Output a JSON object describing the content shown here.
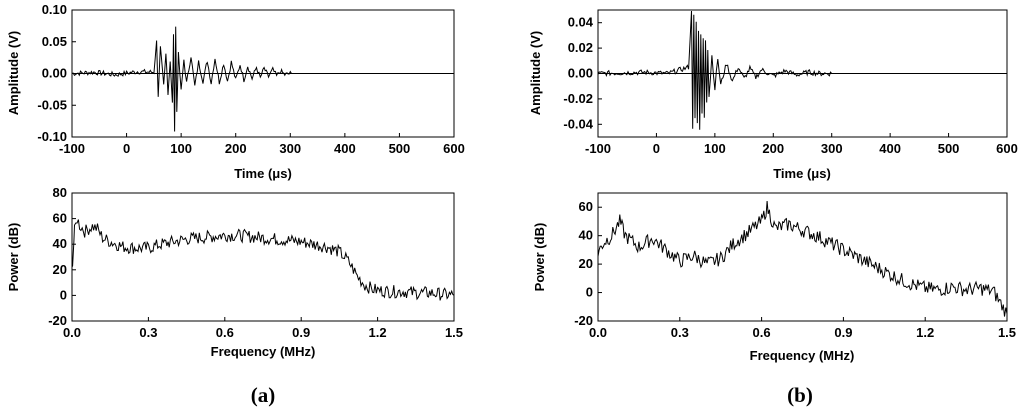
{
  "panel_labels": {
    "a": "(a)",
    "b": "(b)"
  },
  "chart_data": [
    {
      "id": "a_time",
      "type": "line",
      "xlabel": "Time (μs)",
      "ylabel": "Amplitude (V)",
      "xlim": [
        -100,
        600
      ],
      "ylim": [
        -0.1,
        0.1
      ],
      "xticks": [
        -100,
        0,
        100,
        200,
        300,
        400,
        500,
        600
      ],
      "yticks": [
        -0.1,
        -0.05,
        0,
        0.05,
        0.1
      ],
      "ytick_labels": [
        "-0.10",
        "-0.05",
        "0.00",
        "0.05",
        "0.10"
      ],
      "grid": false,
      "x": [
        -100,
        -60,
        -20,
        20,
        50,
        55,
        58,
        62,
        68,
        72,
        76,
        80,
        84,
        86,
        88,
        90,
        92,
        95,
        100,
        105,
        110,
        118,
        125,
        132,
        140,
        148,
        155,
        162,
        170,
        178,
        185,
        192,
        200,
        208,
        215,
        222,
        230,
        238,
        245,
        252,
        260,
        268,
        275,
        282,
        290,
        300,
        400,
        500,
        600
      ],
      "y": [
        0,
        0.002,
        -0.002,
        0.003,
        0.002,
        0.05,
        -0.035,
        0.04,
        -0.02,
        0.03,
        -0.03,
        0.02,
        -0.045,
        0.06,
        -0.095,
        0.075,
        -0.06,
        0.03,
        -0.028,
        0.022,
        -0.015,
        0.028,
        -0.02,
        0.018,
        -0.012,
        0.02,
        -0.015,
        0.024,
        -0.014,
        0.016,
        -0.012,
        0.018,
        -0.01,
        0.014,
        -0.01,
        0.012,
        -0.008,
        0.01,
        -0.007,
        0.008,
        -0.005,
        0.006,
        -0.004,
        0.004,
        -0.002,
        0,
        0,
        0,
        0
      ]
    },
    {
      "id": "a_spectrum",
      "type": "line",
      "xlabel": "Frequency (MHz)",
      "ylabel": "Power (dB)",
      "xlim": [
        0,
        1.5
      ],
      "ylim": [
        -20,
        80
      ],
      "xticks": [
        0,
        0.3,
        0.6,
        0.9,
        1.2,
        1.5
      ],
      "xtick_labels": [
        "0.0",
        "0.3",
        "0.6",
        "0.9",
        "1.2",
        "1.5"
      ],
      "yticks": [
        -20,
        0,
        20,
        40,
        60,
        80
      ],
      "grid": false,
      "x": [
        0,
        0.005,
        0.01,
        0.02,
        0.03,
        0.05,
        0.08,
        0.1,
        0.12,
        0.15,
        0.2,
        0.25,
        0.3,
        0.35,
        0.4,
        0.45,
        0.5,
        0.55,
        0.6,
        0.65,
        0.7,
        0.75,
        0.8,
        0.85,
        0.9,
        0.95,
        1.0,
        1.05,
        1.08,
        1.1,
        1.12,
        1.15,
        1.18,
        1.2,
        1.25,
        1.3,
        1.35,
        1.4,
        1.45,
        1.5
      ],
      "y": [
        20,
        35,
        50,
        60,
        55,
        50,
        54,
        52,
        45,
        42,
        38,
        37,
        37,
        40,
        42,
        44,
        45,
        46,
        47,
        47,
        46,
        45,
        44,
        43,
        42,
        40,
        38,
        34,
        28,
        22,
        15,
        8,
        5,
        4,
        3,
        3,
        2,
        2,
        1,
        0
      ]
    },
    {
      "id": "b_time",
      "type": "line",
      "xlabel": "Time (μs)",
      "ylabel": "Amplitude (V)",
      "xlim": [
        -100,
        600
      ],
      "ylim": [
        -0.05,
        0.05
      ],
      "xticks": [
        -100,
        0,
        100,
        200,
        300,
        400,
        500,
        600
      ],
      "yticks": [
        -0.04,
        -0.02,
        0,
        0.02,
        0.04
      ],
      "ytick_labels": [
        "-0.04",
        "-0.02",
        "0.00",
        "0.02",
        "0.04"
      ],
      "grid": false,
      "x": [
        -100,
        -20,
        20,
        55,
        60,
        62,
        64,
        66,
        68,
        70,
        72,
        74,
        76,
        78,
        80,
        82,
        84,
        86,
        88,
        90,
        95,
        100,
        105,
        110,
        120,
        130,
        140,
        150,
        160,
        170,
        180,
        200,
        220,
        240,
        260,
        280,
        300,
        400,
        500,
        600
      ],
      "y": [
        0,
        0.001,
        0,
        0.005,
        0.048,
        -0.042,
        0.045,
        -0.035,
        0.04,
        -0.04,
        0.035,
        -0.045,
        0.032,
        -0.03,
        0.028,
        -0.035,
        0.025,
        -0.022,
        0.02,
        -0.018,
        0.014,
        -0.012,
        0.012,
        -0.009,
        0.008,
        -0.006,
        0.005,
        -0.004,
        0.004,
        -0.003,
        0.003,
        -0.002,
        0.002,
        -0.001,
        0.001,
        0,
        0,
        0,
        0,
        0
      ]
    },
    {
      "id": "b_spectrum",
      "type": "line",
      "xlabel": "Frequency (MHz)",
      "ylabel": "Power (dB)",
      "xlim": [
        0,
        1.5
      ],
      "ylim": [
        -20,
        70
      ],
      "xticks": [
        0,
        0.3,
        0.6,
        0.9,
        1.2,
        1.5
      ],
      "xtick_labels": [
        "0.0",
        "0.3",
        "0.6",
        "0.9",
        "1.2",
        "1.5"
      ],
      "yticks": [
        -20,
        0,
        20,
        40,
        60
      ],
      "grid": false,
      "x": [
        0,
        0.02,
        0.05,
        0.08,
        0.1,
        0.15,
        0.2,
        0.25,
        0.3,
        0.35,
        0.4,
        0.45,
        0.5,
        0.55,
        0.6,
        0.62,
        0.65,
        0.7,
        0.75,
        0.8,
        0.85,
        0.9,
        0.95,
        1.0,
        1.05,
        1.1,
        1.15,
        1.2,
        1.25,
        1.3,
        1.35,
        1.4,
        1.45,
        1.5
      ],
      "y": [
        28,
        35,
        40,
        50,
        40,
        32,
        38,
        30,
        22,
        26,
        20,
        24,
        35,
        42,
        50,
        60,
        45,
        48,
        44,
        40,
        35,
        30,
        25,
        20,
        15,
        10,
        6,
        3,
        2,
        4,
        2,
        3,
        1,
        -15
      ]
    }
  ]
}
